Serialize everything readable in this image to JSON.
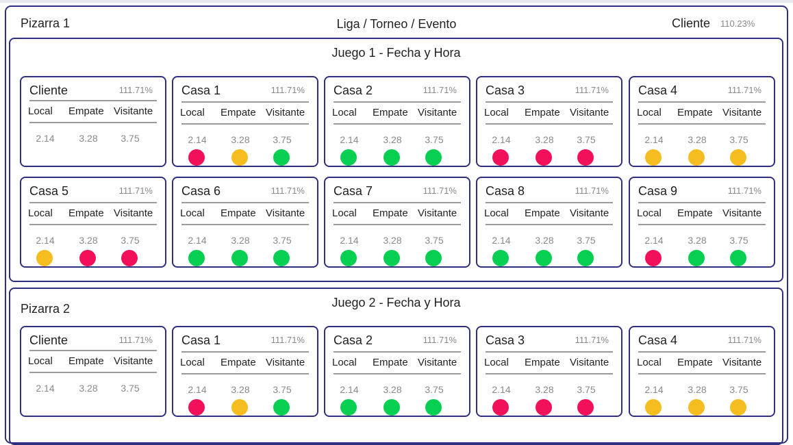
{
  "header": {
    "pizarra": "Pizarra 1",
    "event": "Liga / Torneo / Evento",
    "client": "Cliente",
    "client_pct": "110.23%"
  },
  "colors": {
    "red": "#f2105a",
    "yellow": "#f6bd21",
    "green": "#07cf52"
  },
  "columns": {
    "local": "Local",
    "empate": "Empate",
    "visitante": "Visitante"
  },
  "games": [
    {
      "title": "Juego 1 - Fecha y Hora",
      "cards": [
        {
          "name": "Cliente",
          "pct": "111.71%",
          "local": "2.14",
          "empate": "3.28",
          "visitante": "3.75",
          "dots": []
        },
        {
          "name": "Casa 1",
          "pct": "111.71%",
          "local": "2.14",
          "empate": "3.28",
          "visitante": "3.75",
          "dots": [
            "red",
            "yellow",
            "green"
          ]
        },
        {
          "name": "Casa 2",
          "pct": "111.71%",
          "local": "2.14",
          "empate": "3.28",
          "visitante": "3.75",
          "dots": [
            "green",
            "green",
            "green"
          ]
        },
        {
          "name": "Casa 3",
          "pct": "111.71%",
          "local": "2.14",
          "empate": "3.28",
          "visitante": "3.75",
          "dots": [
            "red",
            "red",
            "red"
          ]
        },
        {
          "name": "Casa 4",
          "pct": "111.71%",
          "local": "2.14",
          "empate": "3.28",
          "visitante": "3.75",
          "dots": [
            "yellow",
            "yellow",
            "yellow"
          ]
        },
        {
          "name": "Casa 5",
          "pct": "111.71%",
          "local": "2.14",
          "empate": "3.28",
          "visitante": "3.75",
          "dots": [
            "yellow",
            "red",
            "red"
          ]
        },
        {
          "name": "Casa 6",
          "pct": "111.71%",
          "local": "2.14",
          "empate": "3.28",
          "visitante": "3.75",
          "dots": [
            "green",
            "green",
            "green"
          ]
        },
        {
          "name": "Casa 7",
          "pct": "111.71%",
          "local": "2.14",
          "empate": "3.28",
          "visitante": "3.75",
          "dots": [
            "green",
            "green",
            "green"
          ]
        },
        {
          "name": "Casa 8",
          "pct": "111.71%",
          "local": "2.14",
          "empate": "3.28",
          "visitante": "3.75",
          "dots": [
            "green",
            "green",
            "green"
          ]
        },
        {
          "name": "Casa 9",
          "pct": "111.71%",
          "local": "2.14",
          "empate": "3.28",
          "visitante": "3.75",
          "dots": [
            "red",
            "green",
            "green"
          ]
        }
      ]
    },
    {
      "pizarra": "Pizarra 2",
      "title": "Juego 2 - Fecha y Hora",
      "cards": [
        {
          "name": "Cliente",
          "pct": "111.71%",
          "local": "2.14",
          "empate": "3.28",
          "visitante": "3.75",
          "dots": []
        },
        {
          "name": "Casa 1",
          "pct": "111.71%",
          "local": "2.14",
          "empate": "3.28",
          "visitante": "3.75",
          "dots": [
            "red",
            "yellow",
            "green"
          ]
        },
        {
          "name": "Casa 2",
          "pct": "111.71%",
          "local": "2.14",
          "empate": "3.28",
          "visitante": "3.75",
          "dots": [
            "green",
            "green",
            "green"
          ]
        },
        {
          "name": "Casa 3",
          "pct": "111.71%",
          "local": "2.14",
          "empate": "3.28",
          "visitante": "3.75",
          "dots": [
            "red",
            "red",
            "red"
          ]
        },
        {
          "name": "Casa 4",
          "pct": "111.71%",
          "local": "2.14",
          "empate": "3.28",
          "visitante": "3.75",
          "dots": [
            "yellow",
            "yellow",
            "yellow"
          ]
        }
      ]
    }
  ]
}
